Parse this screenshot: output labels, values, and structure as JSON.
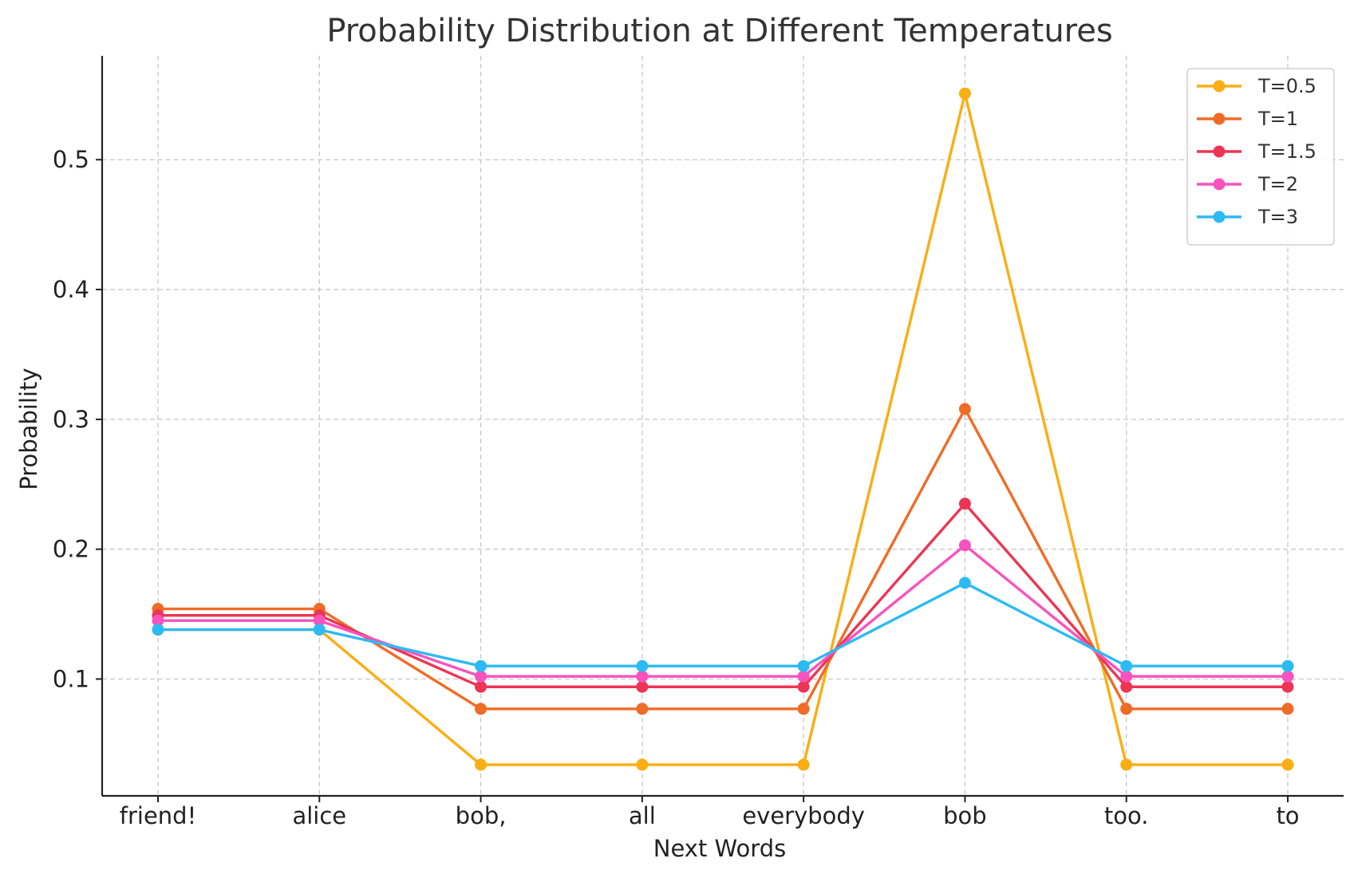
{
  "chart_data": {
    "type": "line",
    "title": "Probability Distribution at Different Temperatures",
    "xlabel": "Next Words",
    "ylabel": "Probability",
    "categories": [
      "friend!",
      "alice",
      "bob,",
      "all",
      "everybody",
      "bob",
      "too.",
      "to"
    ],
    "ylim": [
      0.01,
      0.58
    ],
    "yticks": [
      0.1,
      0.2,
      0.3,
      0.4,
      0.5
    ],
    "ytick_labels": [
      "0.1",
      "0.2",
      "0.3",
      "0.4",
      "0.5"
    ],
    "grid": true,
    "legend_position": "top-right",
    "series": [
      {
        "name": "T=0.5",
        "color": "#F9AE14",
        "values": [
          0.138,
          0.138,
          0.034,
          0.034,
          0.034,
          0.551,
          0.034,
          0.034
        ]
      },
      {
        "name": "T=1",
        "color": "#EF6C27",
        "values": [
          0.154,
          0.154,
          0.077,
          0.077,
          0.077,
          0.308,
          0.077,
          0.077
        ]
      },
      {
        "name": "T=1.5",
        "color": "#EC3554",
        "values": [
          0.149,
          0.149,
          0.094,
          0.094,
          0.094,
          0.235,
          0.094,
          0.094
        ]
      },
      {
        "name": "T=2",
        "color": "#F653BE",
        "values": [
          0.145,
          0.145,
          0.102,
          0.102,
          0.102,
          0.203,
          0.102,
          0.102
        ]
      },
      {
        "name": "T=3",
        "color": "#2DBAF2",
        "values": [
          0.138,
          0.138,
          0.11,
          0.11,
          0.11,
          0.174,
          0.11,
          0.11
        ]
      }
    ]
  }
}
